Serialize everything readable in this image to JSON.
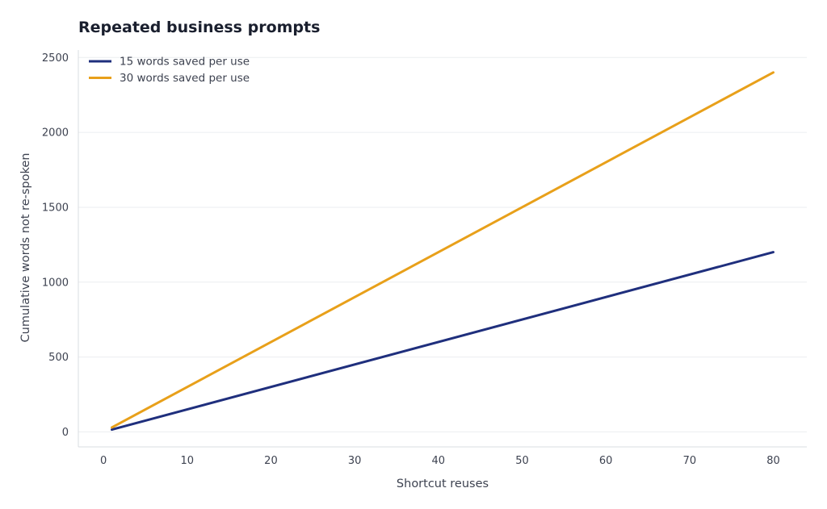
{
  "chart_data": {
    "type": "line",
    "title": "Repeated business prompts",
    "xlabel": "Shortcut reuses",
    "ylabel": "Cumulative words not re-spoken",
    "xlim": [
      -3,
      84
    ],
    "ylim": [
      -100,
      2550
    ],
    "x_ticks": [
      0,
      10,
      20,
      30,
      40,
      50,
      60,
      70,
      80
    ],
    "y_ticks": [
      0,
      500,
      1000,
      1500,
      2000,
      2500
    ],
    "grid": "horizontal",
    "legend_position": "top-left",
    "series": [
      {
        "name": "15 words saved per use",
        "color": "#1f2f7d",
        "x": [
          1,
          80
        ],
        "y": [
          15,
          1200
        ]
      },
      {
        "name": "30 words saved per use",
        "color": "#e8a01a",
        "x": [
          1,
          80
        ],
        "y": [
          30,
          2400
        ]
      }
    ]
  }
}
